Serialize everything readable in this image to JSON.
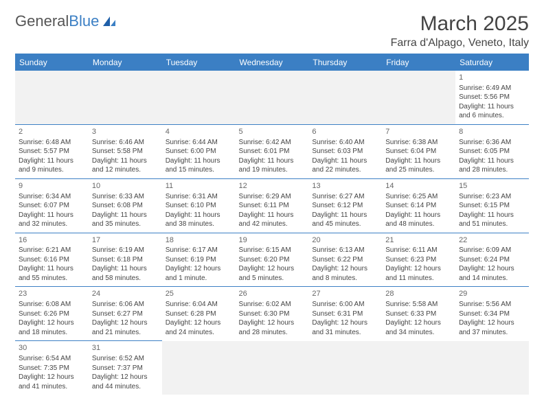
{
  "brand": {
    "part1": "General",
    "part2": "Blue"
  },
  "title": "March 2025",
  "location": "Farra d'Alpago, Veneto, Italy",
  "colors": {
    "accent": "#3b7fc4",
    "header_bg": "#3b7fc4",
    "header_text": "#ffffff",
    "empty_bg": "#f2f2f2",
    "text": "#444444"
  },
  "day_headers": [
    "Sunday",
    "Monday",
    "Tuesday",
    "Wednesday",
    "Thursday",
    "Friday",
    "Saturday"
  ],
  "weeks": [
    [
      null,
      null,
      null,
      null,
      null,
      null,
      {
        "n": "1",
        "sr": "Sunrise: 6:49 AM",
        "ss": "Sunset: 5:56 PM",
        "dl": "Daylight: 11 hours and 6 minutes."
      }
    ],
    [
      {
        "n": "2",
        "sr": "Sunrise: 6:48 AM",
        "ss": "Sunset: 5:57 PM",
        "dl": "Daylight: 11 hours and 9 minutes."
      },
      {
        "n": "3",
        "sr": "Sunrise: 6:46 AM",
        "ss": "Sunset: 5:58 PM",
        "dl": "Daylight: 11 hours and 12 minutes."
      },
      {
        "n": "4",
        "sr": "Sunrise: 6:44 AM",
        "ss": "Sunset: 6:00 PM",
        "dl": "Daylight: 11 hours and 15 minutes."
      },
      {
        "n": "5",
        "sr": "Sunrise: 6:42 AM",
        "ss": "Sunset: 6:01 PM",
        "dl": "Daylight: 11 hours and 19 minutes."
      },
      {
        "n": "6",
        "sr": "Sunrise: 6:40 AM",
        "ss": "Sunset: 6:03 PM",
        "dl": "Daylight: 11 hours and 22 minutes."
      },
      {
        "n": "7",
        "sr": "Sunrise: 6:38 AM",
        "ss": "Sunset: 6:04 PM",
        "dl": "Daylight: 11 hours and 25 minutes."
      },
      {
        "n": "8",
        "sr": "Sunrise: 6:36 AM",
        "ss": "Sunset: 6:05 PM",
        "dl": "Daylight: 11 hours and 28 minutes."
      }
    ],
    [
      {
        "n": "9",
        "sr": "Sunrise: 6:34 AM",
        "ss": "Sunset: 6:07 PM",
        "dl": "Daylight: 11 hours and 32 minutes."
      },
      {
        "n": "10",
        "sr": "Sunrise: 6:33 AM",
        "ss": "Sunset: 6:08 PM",
        "dl": "Daylight: 11 hours and 35 minutes."
      },
      {
        "n": "11",
        "sr": "Sunrise: 6:31 AM",
        "ss": "Sunset: 6:10 PM",
        "dl": "Daylight: 11 hours and 38 minutes."
      },
      {
        "n": "12",
        "sr": "Sunrise: 6:29 AM",
        "ss": "Sunset: 6:11 PM",
        "dl": "Daylight: 11 hours and 42 minutes."
      },
      {
        "n": "13",
        "sr": "Sunrise: 6:27 AM",
        "ss": "Sunset: 6:12 PM",
        "dl": "Daylight: 11 hours and 45 minutes."
      },
      {
        "n": "14",
        "sr": "Sunrise: 6:25 AM",
        "ss": "Sunset: 6:14 PM",
        "dl": "Daylight: 11 hours and 48 minutes."
      },
      {
        "n": "15",
        "sr": "Sunrise: 6:23 AM",
        "ss": "Sunset: 6:15 PM",
        "dl": "Daylight: 11 hours and 51 minutes."
      }
    ],
    [
      {
        "n": "16",
        "sr": "Sunrise: 6:21 AM",
        "ss": "Sunset: 6:16 PM",
        "dl": "Daylight: 11 hours and 55 minutes."
      },
      {
        "n": "17",
        "sr": "Sunrise: 6:19 AM",
        "ss": "Sunset: 6:18 PM",
        "dl": "Daylight: 11 hours and 58 minutes."
      },
      {
        "n": "18",
        "sr": "Sunrise: 6:17 AM",
        "ss": "Sunset: 6:19 PM",
        "dl": "Daylight: 12 hours and 1 minute."
      },
      {
        "n": "19",
        "sr": "Sunrise: 6:15 AM",
        "ss": "Sunset: 6:20 PM",
        "dl": "Daylight: 12 hours and 5 minutes."
      },
      {
        "n": "20",
        "sr": "Sunrise: 6:13 AM",
        "ss": "Sunset: 6:22 PM",
        "dl": "Daylight: 12 hours and 8 minutes."
      },
      {
        "n": "21",
        "sr": "Sunrise: 6:11 AM",
        "ss": "Sunset: 6:23 PM",
        "dl": "Daylight: 12 hours and 11 minutes."
      },
      {
        "n": "22",
        "sr": "Sunrise: 6:09 AM",
        "ss": "Sunset: 6:24 PM",
        "dl": "Daylight: 12 hours and 14 minutes."
      }
    ],
    [
      {
        "n": "23",
        "sr": "Sunrise: 6:08 AM",
        "ss": "Sunset: 6:26 PM",
        "dl": "Daylight: 12 hours and 18 minutes."
      },
      {
        "n": "24",
        "sr": "Sunrise: 6:06 AM",
        "ss": "Sunset: 6:27 PM",
        "dl": "Daylight: 12 hours and 21 minutes."
      },
      {
        "n": "25",
        "sr": "Sunrise: 6:04 AM",
        "ss": "Sunset: 6:28 PM",
        "dl": "Daylight: 12 hours and 24 minutes."
      },
      {
        "n": "26",
        "sr": "Sunrise: 6:02 AM",
        "ss": "Sunset: 6:30 PM",
        "dl": "Daylight: 12 hours and 28 minutes."
      },
      {
        "n": "27",
        "sr": "Sunrise: 6:00 AM",
        "ss": "Sunset: 6:31 PM",
        "dl": "Daylight: 12 hours and 31 minutes."
      },
      {
        "n": "28",
        "sr": "Sunrise: 5:58 AM",
        "ss": "Sunset: 6:33 PM",
        "dl": "Daylight: 12 hours and 34 minutes."
      },
      {
        "n": "29",
        "sr": "Sunrise: 5:56 AM",
        "ss": "Sunset: 6:34 PM",
        "dl": "Daylight: 12 hours and 37 minutes."
      }
    ],
    [
      {
        "n": "30",
        "sr": "Sunrise: 6:54 AM",
        "ss": "Sunset: 7:35 PM",
        "dl": "Daylight: 12 hours and 41 minutes."
      },
      {
        "n": "31",
        "sr": "Sunrise: 6:52 AM",
        "ss": "Sunset: 7:37 PM",
        "dl": "Daylight: 12 hours and 44 minutes."
      },
      null,
      null,
      null,
      null,
      null
    ]
  ]
}
